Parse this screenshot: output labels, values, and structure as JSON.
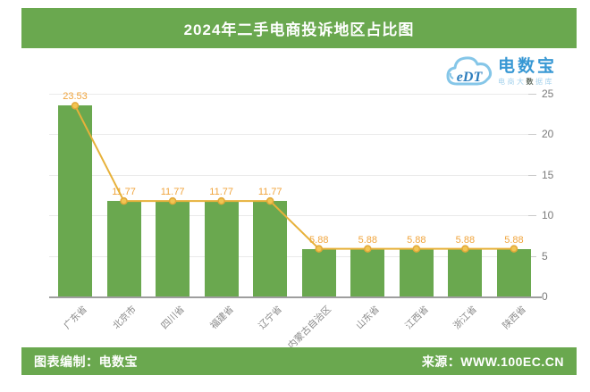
{
  "title": "2024年二手电商投诉地区占比图",
  "logo": {
    "icon": "edt-cloud-icon",
    "initials": "eDT",
    "brand": "电数宝",
    "tagline_prefix": "电商大",
    "tagline_mark": "数",
    "tagline_suffix": "据库"
  },
  "footer": {
    "left": "图表编制：电数宝",
    "right": "来源：WWW.100EC.CN"
  },
  "colors": {
    "green": "#6aa84f",
    "line": "#e7b13a",
    "marker_fill": "#f2c552",
    "marker_stroke": "#e2a839",
    "value_label": "#f0a43c",
    "axis_text": "#7a7a7a",
    "grid": "#eaeaea",
    "baseline": "#9e9e9e",
    "logo_blue": "#3898d4",
    "logo_light_blue": "#85c6e8"
  },
  "chart_data": {
    "type": "bar",
    "overlay": "line",
    "title": "2024年二手电商投诉地区占比图",
    "categories": [
      "广东省",
      "北京市",
      "四川省",
      "福建省",
      "辽宁省",
      "内蒙古自治区",
      "山东省",
      "江西省",
      "浙江省",
      "陕西省"
    ],
    "values": [
      23.53,
      11.77,
      11.77,
      11.77,
      11.77,
      5.88,
      5.88,
      5.88,
      5.88,
      5.88
    ],
    "value_label_format": "2-decimals",
    "xlabel": "",
    "ylabel": "",
    "yticks": [
      0,
      5,
      10,
      15,
      20,
      25
    ],
    "ylim": [
      0,
      25
    ],
    "grid": true,
    "legend": "none",
    "y_axis_position": "right",
    "x_label_rotation": 45
  }
}
